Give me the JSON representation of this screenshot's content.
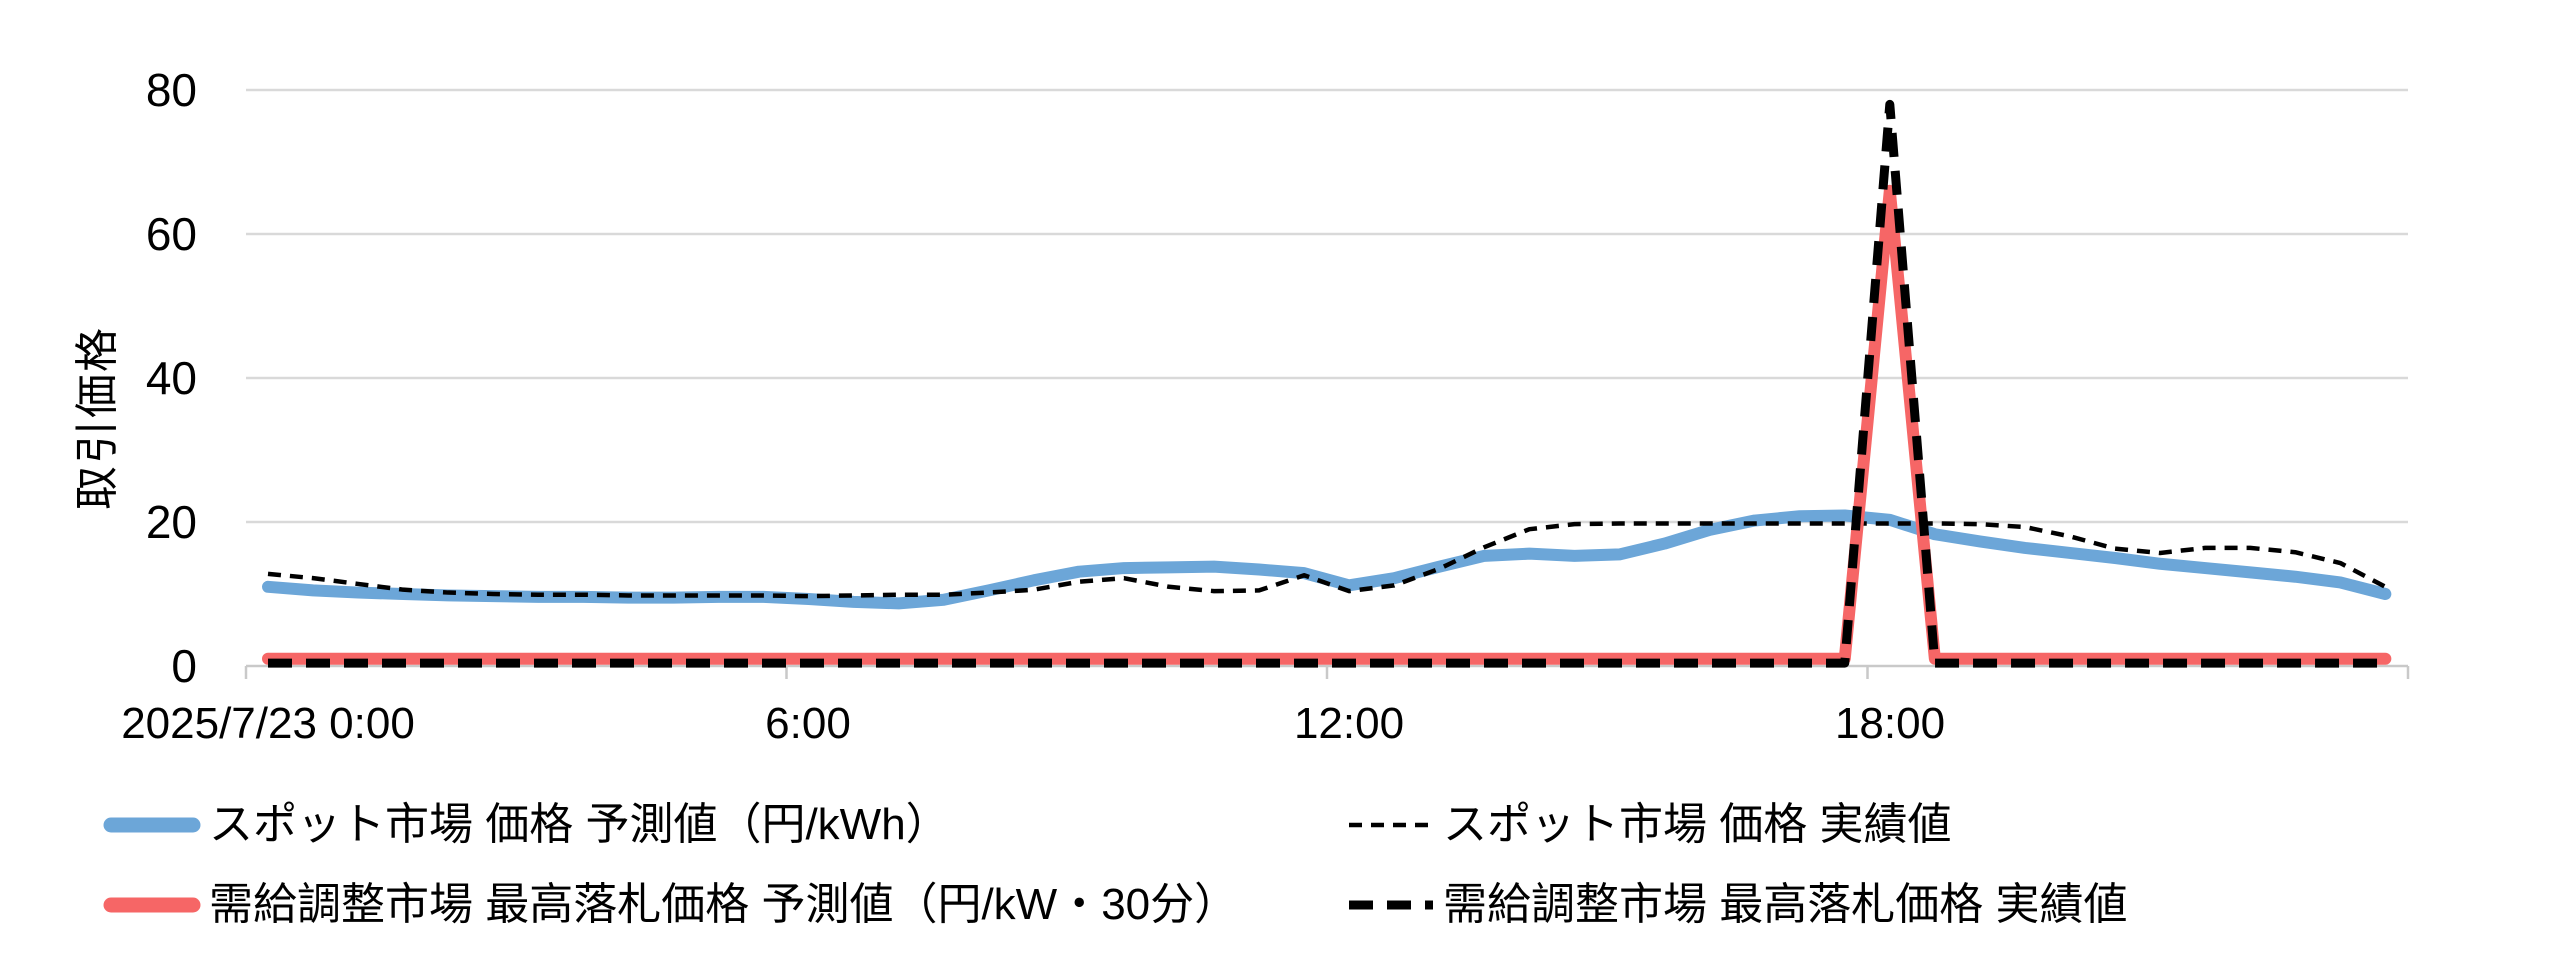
{
  "chart_data": {
    "type": "line",
    "title": "",
    "ylabel": "取引価格",
    "ylim": [
      0,
      80
    ],
    "y_ticks": [
      0,
      20,
      40,
      60,
      80
    ],
    "x_tick_labels": [
      "2025/7/23 0:00",
      "6:00",
      "12:00",
      "18:00"
    ],
    "x_tick_indices": [
      0,
      12,
      24,
      36
    ],
    "grid": "horizontal",
    "legend_position": "bottom",
    "x": [
      "0:00",
      "0:30",
      "1:00",
      "1:30",
      "2:00",
      "2:30",
      "3:00",
      "3:30",
      "4:00",
      "4:30",
      "5:00",
      "5:30",
      "6:00",
      "6:30",
      "7:00",
      "7:30",
      "8:00",
      "8:30",
      "9:00",
      "9:30",
      "10:00",
      "10:30",
      "11:00",
      "11:30",
      "12:00",
      "12:30",
      "13:00",
      "13:30",
      "14:00",
      "14:30",
      "15:00",
      "15:30",
      "16:00",
      "16:30",
      "17:00",
      "17:30",
      "18:00",
      "18:30",
      "19:00",
      "19:30",
      "20:00",
      "20:30",
      "21:00",
      "21:30",
      "22:00",
      "22:30",
      "23:00",
      "23:30"
    ],
    "series": [
      {
        "name": "スポット市場 価格 予測値（円/kWh）",
        "color": "#6CA6D8",
        "line_style": "solid-thick",
        "values": [
          11.0,
          10.5,
          10.2,
          10.0,
          9.8,
          9.7,
          9.6,
          9.6,
          9.5,
          9.5,
          9.6,
          9.6,
          9.3,
          8.9,
          8.7,
          9.2,
          10.5,
          11.9,
          13.1,
          13.6,
          13.7,
          13.8,
          13.4,
          12.9,
          11.2,
          12.2,
          13.8,
          15.3,
          15.6,
          15.3,
          15.5,
          17.0,
          18.9,
          20.2,
          20.8,
          20.9,
          20.3,
          18.3,
          17.3,
          16.4,
          15.7,
          15.0,
          14.2,
          13.6,
          13.0,
          12.4,
          11.6,
          10.0
        ]
      },
      {
        "name": "スポット市場 価格 実績値",
        "color": "#000000",
        "line_style": "dashed-thin",
        "values": [
          12.8,
          12.2,
          11.4,
          10.6,
          10.2,
          10.0,
          9.9,
          9.9,
          9.8,
          9.8,
          9.8,
          9.8,
          9.7,
          9.8,
          9.9,
          9.9,
          10.2,
          10.6,
          11.7,
          12.2,
          11.0,
          10.4,
          10.5,
          12.6,
          10.4,
          11.2,
          13.5,
          16.5,
          19.0,
          19.7,
          19.8,
          19.8,
          19.8,
          19.8,
          19.8,
          19.8,
          19.8,
          19.8,
          19.7,
          19.3,
          18.0,
          16.3,
          15.7,
          16.4,
          16.4,
          15.8,
          14.3,
          11.0
        ]
      },
      {
        "name": "需給調整市場 最高落札価格 予測値（円/kW・30分）",
        "color": "#F66666",
        "line_style": "solid-thick",
        "values": [
          1,
          1,
          1,
          1,
          1,
          1,
          1,
          1,
          1,
          1,
          1,
          1,
          1,
          1,
          1,
          1,
          1,
          1,
          1,
          1,
          1,
          1,
          1,
          1,
          1,
          1,
          1,
          1,
          1,
          1,
          1,
          1,
          1,
          1,
          1,
          1,
          66,
          1,
          1,
          1,
          1,
          1,
          1,
          1,
          1,
          1,
          1,
          1
        ]
      },
      {
        "name": "需給調整市場 最高落札価格 実績値",
        "color": "#000000",
        "line_style": "dashed-thick",
        "values": [
          0.4,
          0.4,
          0.4,
          0.4,
          0.4,
          0.4,
          0.4,
          0.4,
          0.4,
          0.4,
          0.4,
          0.4,
          0.4,
          0.4,
          0.4,
          0.4,
          0.4,
          0.4,
          0.4,
          0.4,
          0.4,
          0.4,
          0.4,
          0.4,
          0.4,
          0.4,
          0.4,
          0.4,
          0.4,
          0.4,
          0.4,
          0.4,
          0.4,
          0.4,
          0.4,
          0.4,
          78,
          0.4,
          0.4,
          0.4,
          0.4,
          0.4,
          0.4,
          0.4,
          0.4,
          0.4,
          0.4,
          0.4
        ]
      }
    ],
    "colors": {
      "gridline": "#D9D9D9",
      "axis_line": "#C9C9C9",
      "tick_mark": "#C9C9C9"
    }
  }
}
